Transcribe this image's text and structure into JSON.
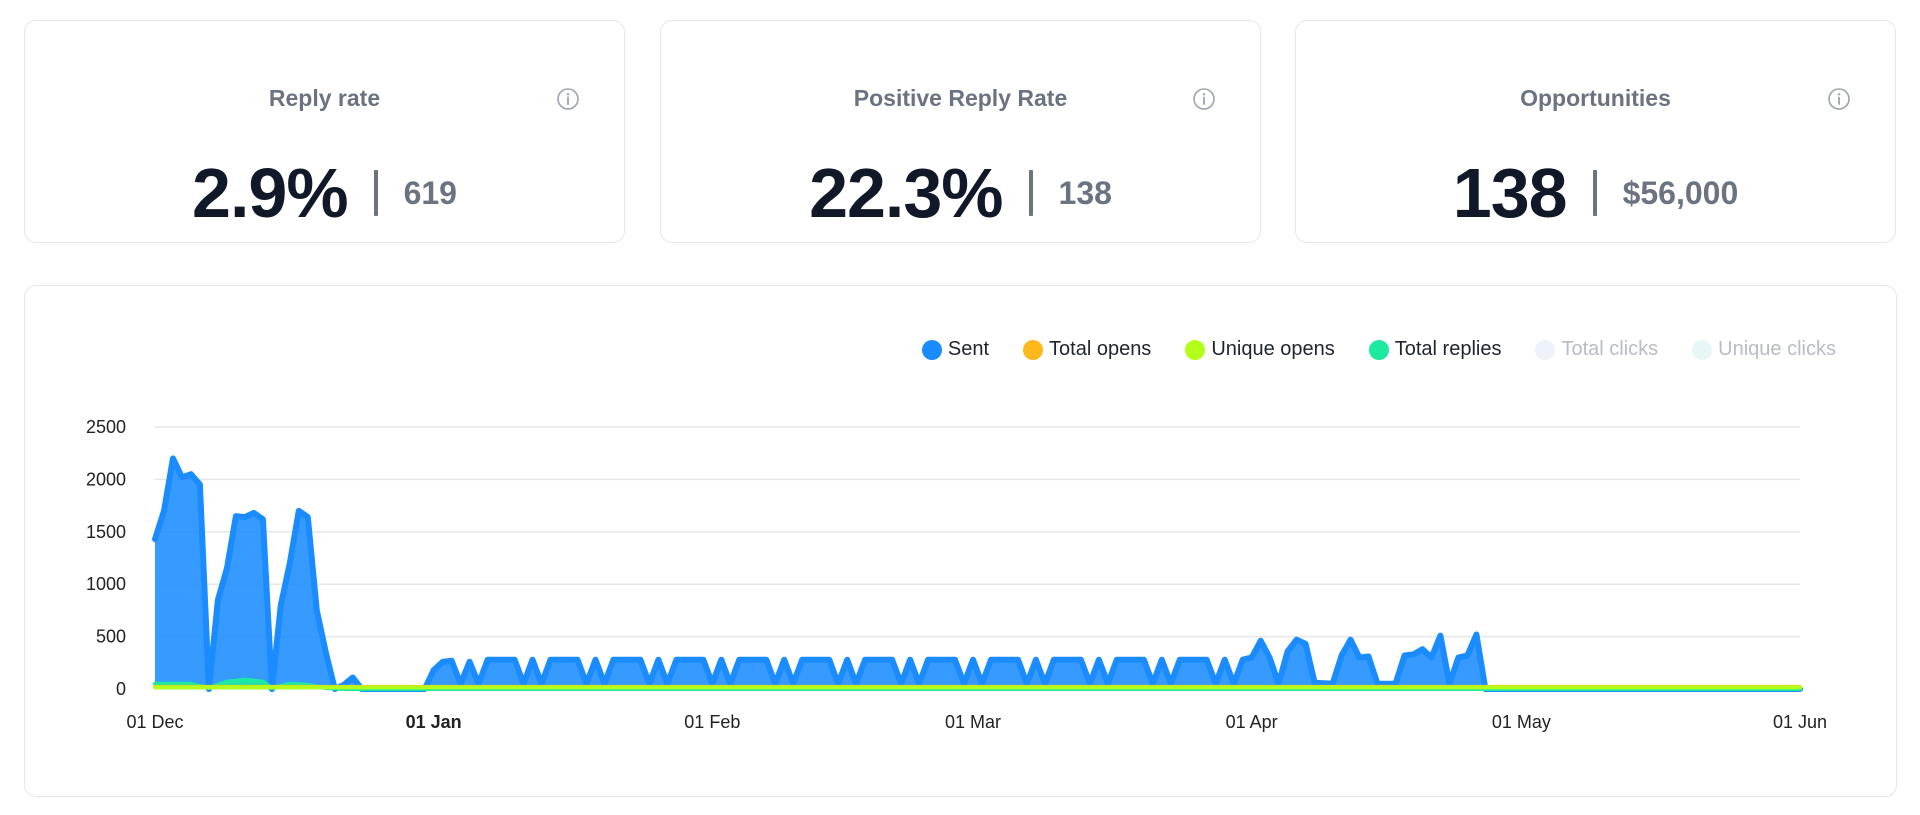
{
  "stats": [
    {
      "label": "Reply rate",
      "value": "2.9%",
      "sub": "619"
    },
    {
      "label": "Positive Reply Rate",
      "value": "22.3%",
      "sub": "138"
    },
    {
      "label": "Opportunities",
      "value": "138",
      "sub": "$56,000"
    }
  ],
  "chart_data": {
    "type": "area",
    "title": "",
    "xlabel": "",
    "ylabel": "",
    "ylim": [
      0,
      2500
    ],
    "yticks": [
      "0",
      "500",
      "1000",
      "1500",
      "2000",
      "2500"
    ],
    "xticks": [
      {
        "label": "01 Dec",
        "date": "2023-12-01",
        "bold": false
      },
      {
        "label": "01 Jan",
        "date": "2024-01-01",
        "bold": true
      },
      {
        "label": "01 Feb",
        "date": "2024-02-01",
        "bold": false
      },
      {
        "label": "01 Mar",
        "date": "2024-03-01",
        "bold": false
      },
      {
        "label": "01 Apr",
        "date": "2024-04-01",
        "bold": false
      },
      {
        "label": "01 May",
        "date": "2024-05-01",
        "bold": false
      },
      {
        "label": "01 Jun",
        "date": "2024-06-01",
        "bold": false
      }
    ],
    "grid": true,
    "legend_position": "top-right",
    "legend": [
      {
        "name": "Sent",
        "color": "#1a8cff",
        "active": true
      },
      {
        "name": "Total opens",
        "color": "#ffb81c",
        "active": true
      },
      {
        "name": "Unique opens",
        "color": "#b3ff1a",
        "active": true
      },
      {
        "name": "Total replies",
        "color": "#1de9a0",
        "active": true
      },
      {
        "name": "Total clicks",
        "color": "#eef3fa",
        "active": false
      },
      {
        "name": "Unique clicks",
        "color": "#e9f6f8",
        "active": false
      }
    ],
    "series": [
      {
        "name": "Sent",
        "color": "#1a8cff",
        "points": [
          [
            "2023-12-01",
            1430
          ],
          [
            "2023-12-02",
            1700
          ],
          [
            "2023-12-03",
            2200
          ],
          [
            "2023-12-04",
            2020
          ],
          [
            "2023-12-05",
            2050
          ],
          [
            "2023-12-06",
            1950
          ],
          [
            "2023-12-07",
            0
          ],
          [
            "2023-12-08",
            850
          ],
          [
            "2023-12-09",
            1150
          ],
          [
            "2023-12-10",
            1650
          ],
          [
            "2023-12-11",
            1640
          ],
          [
            "2023-12-12",
            1680
          ],
          [
            "2023-12-13",
            1620
          ],
          [
            "2023-12-14",
            0
          ],
          [
            "2023-12-15",
            800
          ],
          [
            "2023-12-16",
            1200
          ],
          [
            "2023-12-17",
            1700
          ],
          [
            "2023-12-18",
            1640
          ],
          [
            "2023-12-19",
            750
          ],
          [
            "2023-12-20",
            350
          ],
          [
            "2023-12-21",
            0
          ],
          [
            "2023-12-22",
            40
          ],
          [
            "2023-12-23",
            110
          ],
          [
            "2023-12-24",
            0
          ],
          [
            "2023-12-31",
            0
          ],
          [
            "2024-01-01",
            180
          ],
          [
            "2024-01-02",
            260
          ],
          [
            "2024-01-03",
            270
          ],
          [
            "2024-01-04",
            50
          ],
          [
            "2024-01-05",
            260
          ],
          [
            "2024-01-06",
            50
          ],
          [
            "2024-01-07",
            280
          ],
          [
            "2024-01-08",
            280
          ],
          [
            "2024-01-09",
            280
          ],
          [
            "2024-01-10",
            280
          ],
          [
            "2024-01-11",
            50
          ],
          [
            "2024-01-12",
            280
          ],
          [
            "2024-01-13",
            50
          ],
          [
            "2024-01-14",
            280
          ],
          [
            "2024-01-15",
            280
          ],
          [
            "2024-01-16",
            280
          ],
          [
            "2024-01-17",
            280
          ],
          [
            "2024-01-18",
            50
          ],
          [
            "2024-01-19",
            280
          ],
          [
            "2024-01-20",
            50
          ],
          [
            "2024-01-21",
            280
          ],
          [
            "2024-01-22",
            280
          ],
          [
            "2024-01-23",
            280
          ],
          [
            "2024-01-24",
            280
          ],
          [
            "2024-01-25",
            50
          ],
          [
            "2024-01-26",
            280
          ],
          [
            "2024-01-27",
            50
          ],
          [
            "2024-01-28",
            280
          ],
          [
            "2024-01-29",
            280
          ],
          [
            "2024-01-30",
            280
          ],
          [
            "2024-01-31",
            280
          ],
          [
            "2024-02-01",
            50
          ],
          [
            "2024-02-02",
            280
          ],
          [
            "2024-02-03",
            50
          ],
          [
            "2024-02-04",
            280
          ],
          [
            "2024-02-05",
            280
          ],
          [
            "2024-02-06",
            280
          ],
          [
            "2024-02-07",
            280
          ],
          [
            "2024-02-08",
            50
          ],
          [
            "2024-02-09",
            280
          ],
          [
            "2024-02-10",
            50
          ],
          [
            "2024-02-11",
            280
          ],
          [
            "2024-02-12",
            280
          ],
          [
            "2024-02-13",
            280
          ],
          [
            "2024-02-14",
            280
          ],
          [
            "2024-02-15",
            50
          ],
          [
            "2024-02-16",
            280
          ],
          [
            "2024-02-17",
            50
          ],
          [
            "2024-02-18",
            280
          ],
          [
            "2024-02-19",
            280
          ],
          [
            "2024-02-20",
            280
          ],
          [
            "2024-02-21",
            280
          ],
          [
            "2024-02-22",
            50
          ],
          [
            "2024-02-23",
            280
          ],
          [
            "2024-02-24",
            50
          ],
          [
            "2024-02-25",
            280
          ],
          [
            "2024-02-26",
            280
          ],
          [
            "2024-02-27",
            280
          ],
          [
            "2024-02-28",
            280
          ],
          [
            "2024-02-29",
            50
          ],
          [
            "2024-03-01",
            280
          ],
          [
            "2024-03-02",
            50
          ],
          [
            "2024-03-03",
            280
          ],
          [
            "2024-03-04",
            280
          ],
          [
            "2024-03-05",
            280
          ],
          [
            "2024-03-06",
            280
          ],
          [
            "2024-03-07",
            50
          ],
          [
            "2024-03-08",
            280
          ],
          [
            "2024-03-09",
            50
          ],
          [
            "2024-03-10",
            280
          ],
          [
            "2024-03-11",
            280
          ],
          [
            "2024-03-12",
            280
          ],
          [
            "2024-03-13",
            280
          ],
          [
            "2024-03-14",
            50
          ],
          [
            "2024-03-15",
            280
          ],
          [
            "2024-03-16",
            50
          ],
          [
            "2024-03-17",
            280
          ],
          [
            "2024-03-18",
            280
          ],
          [
            "2024-03-19",
            280
          ],
          [
            "2024-03-20",
            280
          ],
          [
            "2024-03-21",
            50
          ],
          [
            "2024-03-22",
            280
          ],
          [
            "2024-03-23",
            50
          ],
          [
            "2024-03-24",
            280
          ],
          [
            "2024-03-25",
            280
          ],
          [
            "2024-03-26",
            280
          ],
          [
            "2024-03-27",
            280
          ],
          [
            "2024-03-28",
            50
          ],
          [
            "2024-03-29",
            280
          ],
          [
            "2024-03-30",
            50
          ],
          [
            "2024-03-31",
            280
          ],
          [
            "2024-04-01",
            300
          ],
          [
            "2024-04-02",
            460
          ],
          [
            "2024-04-03",
            300
          ],
          [
            "2024-04-04",
            50
          ],
          [
            "2024-04-05",
            360
          ],
          [
            "2024-04-06",
            470
          ],
          [
            "2024-04-07",
            430
          ],
          [
            "2024-04-08",
            60
          ],
          [
            "2024-04-10",
            50
          ],
          [
            "2024-04-11",
            320
          ],
          [
            "2024-04-12",
            470
          ],
          [
            "2024-04-13",
            300
          ],
          [
            "2024-04-14",
            310
          ],
          [
            "2024-04-15",
            50
          ],
          [
            "2024-04-17",
            50
          ],
          [
            "2024-04-18",
            320
          ],
          [
            "2024-04-19",
            330
          ],
          [
            "2024-04-20",
            380
          ],
          [
            "2024-04-21",
            300
          ],
          [
            "2024-04-22",
            510
          ],
          [
            "2024-04-23",
            50
          ],
          [
            "2024-04-24",
            300
          ],
          [
            "2024-04-25",
            320
          ],
          [
            "2024-04-26",
            520
          ],
          [
            "2024-04-27",
            0
          ],
          [
            "2024-06-01",
            0
          ]
        ]
      },
      {
        "name": "Total replies",
        "color": "#1de9a0",
        "points": [
          [
            "2023-12-01",
            50
          ],
          [
            "2023-12-05",
            50
          ],
          [
            "2023-12-07",
            10
          ],
          [
            "2023-12-09",
            70
          ],
          [
            "2023-12-11",
            90
          ],
          [
            "2023-12-13",
            70
          ],
          [
            "2023-12-14",
            10
          ],
          [
            "2023-12-16",
            50
          ],
          [
            "2023-12-18",
            40
          ],
          [
            "2023-12-20",
            10
          ],
          [
            "2023-12-22",
            0
          ],
          [
            "2024-06-01",
            0
          ]
        ]
      },
      {
        "name": "Total opens",
        "color": "#ffb81c",
        "points": [
          [
            "2023-12-01",
            20
          ],
          [
            "2024-06-01",
            20
          ]
        ]
      },
      {
        "name": "Unique opens",
        "color": "#b3ff1a",
        "points": [
          [
            "2023-12-01",
            15
          ],
          [
            "2024-06-01",
            15
          ]
        ]
      }
    ]
  }
}
